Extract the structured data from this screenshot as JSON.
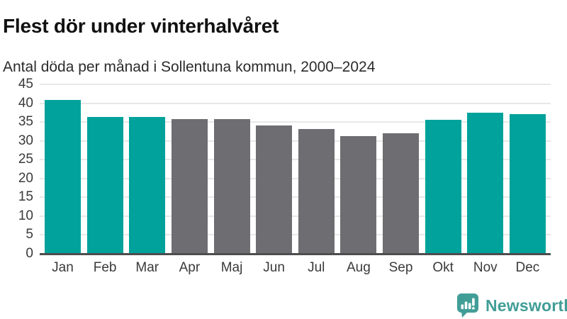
{
  "chart_data": {
    "type": "bar",
    "title": "Flest dör under vinterhalvåret",
    "subtitle": "Antal döda per månad i Sollentuna kommun, 2000–2024",
    "categories": [
      "Jan",
      "Feb",
      "Mar",
      "Apr",
      "Maj",
      "Jun",
      "Jul",
      "Aug",
      "Sep",
      "Okt",
      "Nov",
      "Dec"
    ],
    "values": [
      40.8,
      36.3,
      36.3,
      35.8,
      35.8,
      34.0,
      33.1,
      31.2,
      32.0,
      35.5,
      37.4,
      37.1
    ],
    "bar_groups": [
      "winter",
      "winter",
      "winter",
      "summer",
      "summer",
      "summer",
      "summer",
      "summer",
      "summer",
      "winter",
      "winter",
      "winter"
    ],
    "group_colors": {
      "winter": "#00a29b",
      "summer": "#6d6d72"
    },
    "ylim": [
      0,
      45
    ],
    "yticks": [
      0,
      5,
      10,
      15,
      20,
      25,
      30,
      35,
      40,
      45
    ],
    "xlabel": "",
    "ylabel": "",
    "grid": true,
    "legend": false,
    "gridline_color": "#e8e8e8",
    "axis_color": "#4d4d4d"
  },
  "branding": {
    "logo_text": "Newsworthy",
    "logo_color": "#419e97",
    "logo_icon": "speech-bubble-bar-chart"
  }
}
